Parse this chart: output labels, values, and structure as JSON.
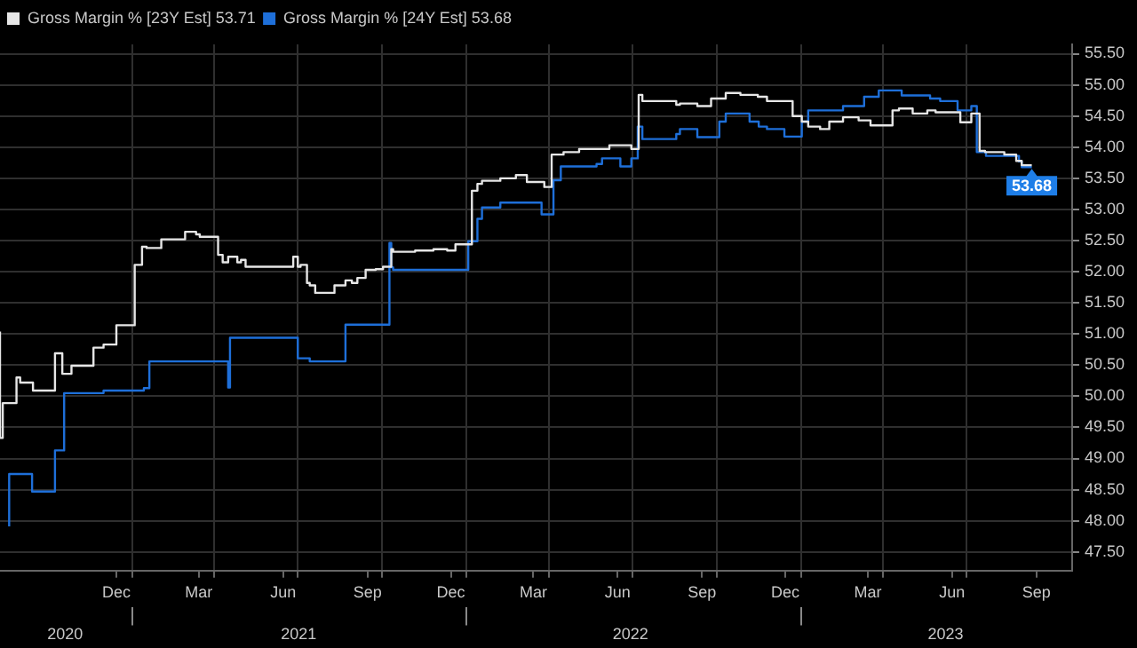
{
  "chart_data": {
    "type": "step",
    "series": [
      {
        "name": "Gross Margin % [23Y Est] 53.71",
        "color": "#e6e6e6",
        "x": [
          "2020-08-10",
          "2020-08-13",
          "2020-08-28",
          "2020-09-01",
          "2020-09-15",
          "2020-10-09",
          "2020-10-17",
          "2020-10-27",
          "2020-11-20",
          "2020-12-01",
          "2020-12-15",
          "2021-01-04",
          "2021-01-12",
          "2021-01-17",
          "2021-02-02",
          "2021-02-28",
          "2021-03-12",
          "2021-03-16",
          "2021-04-05",
          "2021-04-10",
          "2021-04-16",
          "2021-04-26",
          "2021-04-30",
          "2021-05-05",
          "2021-06-26",
          "2021-07-01",
          "2021-07-04",
          "2021-07-11",
          "2021-07-14",
          "2021-07-20",
          "2021-08-10",
          "2021-08-22",
          "2021-08-29",
          "2021-09-04",
          "2021-09-13",
          "2021-09-24",
          "2021-10-02",
          "2021-10-11",
          "2021-10-13",
          "2021-11-06",
          "2021-11-26",
          "2021-12-11",
          "2021-12-20",
          "2022-01-07",
          "2022-01-13",
          "2022-01-18",
          "2022-02-07",
          "2022-02-24",
          "2022-03-08",
          "2022-03-27",
          "2022-04-04",
          "2022-04-17",
          "2022-05-04",
          "2022-06-06",
          "2022-06-30",
          "2022-07-08",
          "2022-07-12",
          "2022-08-18",
          "2022-08-22",
          "2022-09-10",
          "2022-09-25",
          "2022-10-11",
          "2022-10-27",
          "2022-11-15",
          "2022-11-25",
          "2022-12-23",
          "2023-01-02",
          "2023-01-09",
          "2023-01-22",
          "2023-02-01",
          "2023-02-16",
          "2023-03-05",
          "2023-03-18",
          "2023-04-11",
          "2023-04-18",
          "2023-05-03",
          "2023-05-19",
          "2023-05-28",
          "2023-06-24",
          "2023-07-06",
          "2023-07-15",
          "2023-07-21",
          "2023-08-11",
          "2023-08-24",
          "2023-08-30",
          "2023-09-10"
        ],
        "values": [
          51.04,
          49.33,
          49.89,
          50.3,
          50.22,
          50.09,
          50.69,
          50.36,
          50.49,
          50.78,
          50.83,
          51.14,
          52.11,
          52.4,
          52.38,
          52.52,
          52.64,
          52.6,
          52.56,
          52.27,
          52.15,
          52.24,
          52.15,
          52.19,
          52.08,
          52.24,
          52.08,
          52.11,
          51.82,
          51.78,
          51.66,
          51.78,
          51.86,
          51.82,
          51.9,
          52.03,
          52.04,
          52.08,
          52.36,
          52.32,
          52.34,
          52.36,
          52.34,
          52.44,
          53.3,
          53.41,
          53.46,
          53.5,
          53.55,
          53.44,
          53.36,
          53.88,
          53.92,
          53.97,
          54.03,
          53.97,
          54.84,
          54.74,
          54.68,
          54.7,
          54.66,
          54.78,
          54.87,
          54.84,
          54.81,
          54.74,
          54.5,
          54.41,
          54.33,
          54.29,
          54.41,
          54.48,
          54.43,
          54.35,
          54.59,
          54.62,
          54.54,
          54.59,
          54.56,
          54.4,
          54.54,
          53.94,
          53.92,
          53.88,
          53.78,
          53.71
        ]
      },
      {
        "name": "Gross Margin % [24Y Est] 53.68",
        "color": "#1e6fd9",
        "x": [
          "2020-08-20",
          "2020-09-14",
          "2020-10-09",
          "2020-10-19",
          "2020-12-01",
          "2021-01-14",
          "2021-01-20",
          "2021-04-16",
          "2021-04-18",
          "2021-07-01",
          "2021-07-14",
          "2021-08-22",
          "2021-10-09",
          "2021-10-11",
          "2021-10-13",
          "2022-01-03",
          "2022-01-13",
          "2022-01-18",
          "2022-02-07",
          "2022-03-24",
          "2022-04-06",
          "2022-04-14",
          "2022-05-23",
          "2022-05-29",
          "2022-06-18",
          "2022-06-30",
          "2022-07-07",
          "2022-07-12",
          "2022-08-18",
          "2022-08-22",
          "2022-09-10",
          "2022-10-04",
          "2022-10-11",
          "2022-11-06",
          "2022-11-16",
          "2022-11-25",
          "2022-12-14",
          "2023-01-02",
          "2023-01-09",
          "2023-02-16",
          "2023-03-11",
          "2023-03-27",
          "2023-04-21",
          "2023-05-22",
          "2023-06-02",
          "2023-06-21",
          "2023-07-06",
          "2023-07-12",
          "2023-07-22",
          "2023-08-27",
          "2023-08-30",
          "2023-09-10"
        ],
        "values": [
          47.91,
          48.75,
          48.47,
          49.13,
          50.05,
          50.09,
          50.13,
          50.56,
          50.14,
          50.94,
          50.61,
          50.56,
          51.15,
          52.46,
          52.07,
          52.03,
          52.49,
          52.85,
          53.03,
          53.11,
          52.92,
          53.47,
          53.69,
          53.73,
          53.82,
          53.69,
          53.82,
          54.33,
          54.13,
          54.21,
          54.29,
          54.16,
          54.41,
          54.54,
          54.41,
          54.33,
          54.29,
          54.17,
          54.41,
          54.59,
          54.66,
          54.81,
          54.91,
          54.83,
          54.78,
          54.74,
          54.59,
          54.66,
          53.92,
          53.86,
          53.77,
          53.68
        ]
      }
    ],
    "xlim": [
      "2020-08-10",
      "2023-10-24"
    ],
    "xticks": [
      {
        "value": "2020-12-15",
        "label": "Dec"
      },
      {
        "value": "2021-01-01",
        "label": null
      },
      {
        "value": "2021-03-15",
        "label": "Mar"
      },
      {
        "value": "2021-04-01",
        "label": null
      },
      {
        "value": "2021-06-15",
        "label": "Jun"
      },
      {
        "value": "2021-07-01",
        "label": null
      },
      {
        "value": "2021-09-15",
        "label": "Sep"
      },
      {
        "value": "2021-10-01",
        "label": null
      },
      {
        "value": "2021-12-15",
        "label": "Dec"
      },
      {
        "value": "2022-01-01",
        "label": null
      },
      {
        "value": "2022-03-15",
        "label": "Mar"
      },
      {
        "value": "2022-04-01",
        "label": null
      },
      {
        "value": "2022-06-15",
        "label": "Jun"
      },
      {
        "value": "2022-07-01",
        "label": null
      },
      {
        "value": "2022-09-15",
        "label": "Sep"
      },
      {
        "value": "2022-10-01",
        "label": null
      },
      {
        "value": "2022-12-15",
        "label": "Dec"
      },
      {
        "value": "2023-01-01",
        "label": null
      },
      {
        "value": "2023-03-15",
        "label": "Mar"
      },
      {
        "value": "2023-04-01",
        "label": null
      },
      {
        "value": "2023-06-15",
        "label": "Jun"
      },
      {
        "value": "2023-07-01",
        "label": null
      },
      {
        "value": "2023-09-15",
        "label": "Sep"
      }
    ],
    "x2lim": [
      "2020-08-10",
      "2023-10-24"
    ],
    "x2ticks": [
      {
        "value": "2020-10-20",
        "label": "2020"
      },
      {
        "value": "2021-01-01",
        "label": null
      },
      {
        "value": "2021-07-02",
        "label": "2021"
      },
      {
        "value": "2022-01-01",
        "label": null
      },
      {
        "value": "2022-06-29",
        "label": "2022"
      },
      {
        "value": "2023-01-01",
        "label": null
      },
      {
        "value": "2023-06-08",
        "label": "2023"
      }
    ],
    "ylim": [
      47.2,
      55.65
    ],
    "yticks": [
      {
        "value": 47.5,
        "label": "47.50"
      },
      {
        "value": 48,
        "label": "48.00"
      },
      {
        "value": 48.5,
        "label": "48.50"
      },
      {
        "value": 49,
        "label": "49.00"
      },
      {
        "value": 49.5,
        "label": "49.50"
      },
      {
        "value": 50,
        "label": "50.00"
      },
      {
        "value": 50.5,
        "label": "50.50"
      },
      {
        "value": 51,
        "label": "51.00"
      },
      {
        "value": 51.5,
        "label": "51.50"
      },
      {
        "value": 52,
        "label": "52.00"
      },
      {
        "value": 52.5,
        "label": "52.50"
      },
      {
        "value": 53,
        "label": "53.00"
      },
      {
        "value": 53.5,
        "label": "53.50"
      },
      {
        "value": 54,
        "label": "54.00"
      },
      {
        "value": 54.5,
        "label": "54.50"
      },
      {
        "value": 55,
        "label": "55.00"
      },
      {
        "value": 55.5,
        "label": "55.50"
      }
    ],
    "annotations": [
      {
        "text": "53.68",
        "x": "2023-09-10",
        "y": 53.68
      }
    ],
    "grid": true,
    "legend": "top left",
    "marker": "none"
  }
}
